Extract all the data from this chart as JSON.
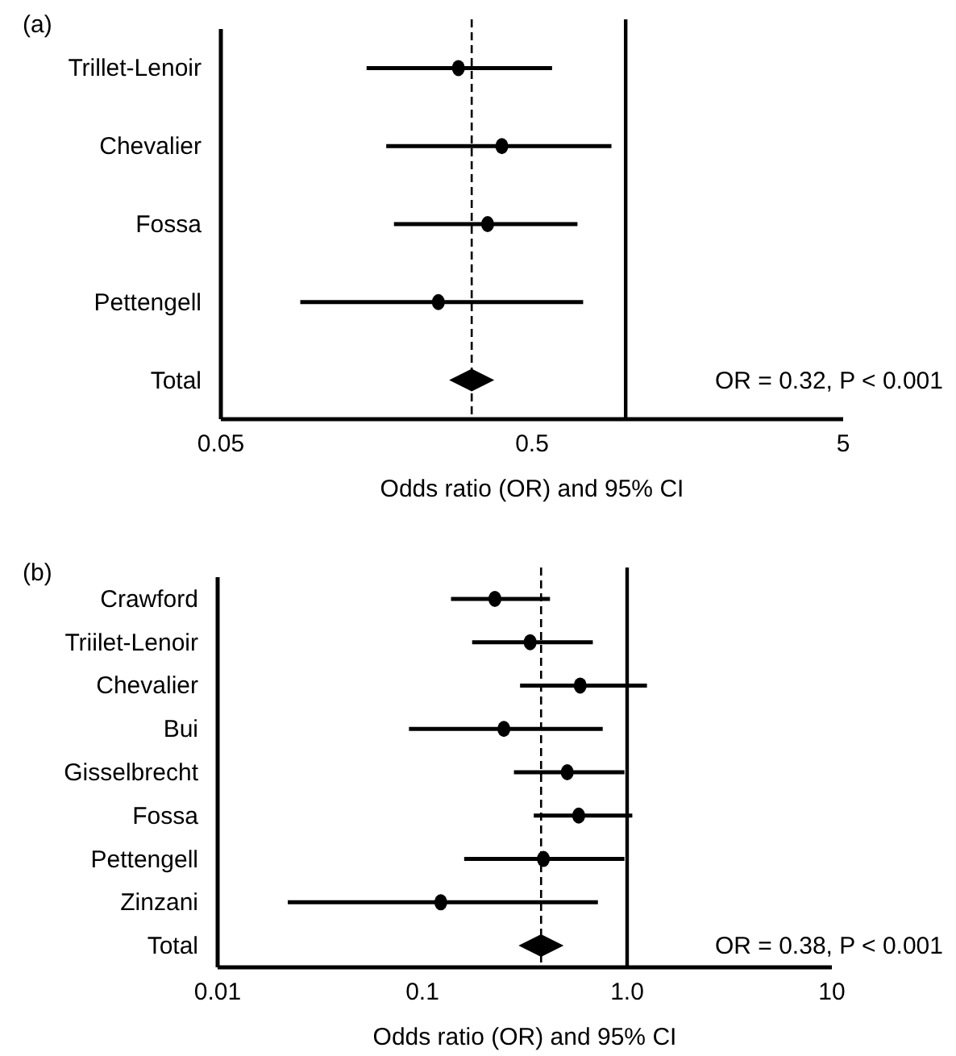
{
  "chart_data": [
    {
      "type": "scatter",
      "title": "(a)",
      "xlabel": "Odds ratio (OR) and 95% CI",
      "orientation": "horizontal",
      "log": "x",
      "grid": false,
      "categories": [
        "Trillet-Lenoir",
        "Chevalier",
        "Fossa",
        "Pettengell",
        "Total"
      ],
      "xlim": [
        0.05,
        5
      ],
      "xticks": [
        0.05,
        0.5,
        5
      ],
      "series": [
        {
          "color": "#000000",
          "marker": "circle",
          "values": [
            0.29,
            0.4,
            0.36,
            0.25,
            null
          ],
          "errors": [
            [
              0.147,
              0.58
            ],
            [
              0.17,
              0.9
            ],
            [
              0.18,
              0.7
            ],
            [
              0.09,
              0.73
            ],
            null
          ]
        },
        {
          "color": "#000000",
          "marker": "diamond",
          "values": [
            null,
            null,
            null,
            null,
            0.32
          ]
        }
      ],
      "ref_lines": [
        {
          "axis": "x",
          "value": 1,
          "line_style": "solid"
        },
        {
          "axis": "x",
          "value": 0.32,
          "line_style": "dashed"
        }
      ],
      "annotations": [
        "OR = 0.32, P < 0.001"
      ]
    },
    {
      "type": "scatter",
      "title": "(b)",
      "xlabel": "Odds ratio (OR) and 95% CI",
      "orientation": "horizontal",
      "log": "x",
      "grid": false,
      "categories": [
        "Crawford",
        "Triilet-Lenoir",
        "Chevalier",
        "Bui",
        "Gisselbrecht",
        "Fossa",
        "Pettengell",
        "Zinzani",
        "Total"
      ],
      "xlim": [
        0.01,
        10
      ],
      "xticks": [
        0.01,
        0.1,
        {
          "value": 1,
          "label": "1.0"
        },
        10
      ],
      "series": [
        {
          "color": "#000000",
          "marker": "circle",
          "values": [
            0.226,
            0.336,
            0.59,
            0.25,
            0.51,
            0.58,
            0.39,
            0.123,
            null
          ],
          "errors": [
            [
              0.138,
              0.42
            ],
            [
              0.175,
              0.68
            ],
            [
              0.3,
              1.25
            ],
            [
              0.086,
              0.76
            ],
            [
              0.28,
              0.97
            ],
            [
              0.35,
              1.06
            ],
            [
              0.16,
              0.97
            ],
            [
              0.022,
              0.72
            ],
            null
          ]
        },
        {
          "color": "#000000",
          "marker": "diamond",
          "values": [
            null,
            null,
            null,
            null,
            null,
            null,
            null,
            null,
            0.38
          ]
        }
      ],
      "ref_lines": [
        {
          "axis": "x",
          "value": 1,
          "line_style": "solid"
        },
        {
          "axis": "x",
          "value": 0.38,
          "line_style": "dashed"
        }
      ],
      "annotations": [
        "OR = 0.38, P < 0.001"
      ]
    }
  ]
}
